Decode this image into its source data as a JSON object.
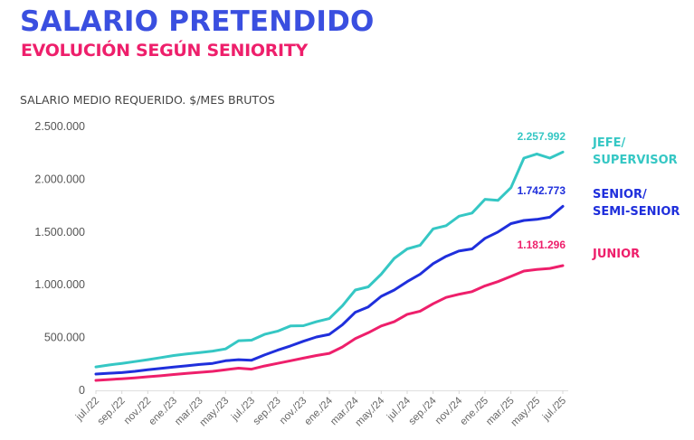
{
  "header": {
    "title": "SALARIO PRETENDIDO",
    "subtitle": "EVOLUCIÓN SEGÚN SENIORITY",
    "axis_title": "SALARIO MEDIO REQUERIDO. $/MES BRUTOS"
  },
  "chart_data": {
    "type": "line",
    "title": "SALARIO PRETENDIDO",
    "subtitle": "EVOLUCIÓN SEGÚN SENIORITY",
    "ylabel": "SALARIO MEDIO REQUERIDO. $/MES BRUTOS",
    "xlabel": "",
    "ylim": [
      0,
      2500000
    ],
    "yticks": [
      0,
      500000,
      1000000,
      1500000,
      2000000,
      2500000
    ],
    "ytick_labels": [
      "0",
      "500.000",
      "1.000.000",
      "1.500.000",
      "2.000.000",
      "2.500.000"
    ],
    "grid": false,
    "legend": "right (end-of-line labels)",
    "x": [
      "jul./22",
      "ago./22",
      "sep./22",
      "oct./22",
      "nov./22",
      "dic./22",
      "ene./23",
      "feb./23",
      "mar./23",
      "abr./23",
      "may./23",
      "jun./23",
      "jul./23",
      "ago./23",
      "sep./23",
      "oct./23",
      "nov./23",
      "dic./23",
      "ene./24",
      "feb./24",
      "mar./24",
      "abr./24",
      "may./24",
      "jun./24",
      "jul./24",
      "ago./24",
      "sep./24",
      "oct./24",
      "nov./24",
      "dic./24",
      "ene./25",
      "feb./25",
      "mar./25",
      "abr./25",
      "may./25",
      "jun./25",
      "jul./25"
    ],
    "xtick_labels": [
      "jul./22",
      "sep./22",
      "nov./22",
      "ene./23",
      "mar./23",
      "may./23",
      "jul./23",
      "sep./23",
      "nov./23",
      "ene./24",
      "mar./24",
      "may./24",
      "jul./24",
      "sep./24",
      "nov./24",
      "ene./25",
      "mar./25",
      "may./25",
      "jul./25"
    ],
    "series": [
      {
        "name": "JEFE/ SUPERVISOR",
        "label_lines": [
          "JEFE/",
          "SUPERVISOR"
        ],
        "color": "#35c7c4",
        "end_label": "2.257.992",
        "values": [
          222000,
          240000,
          255000,
          272000,
          290000,
          310000,
          330000,
          345000,
          358000,
          372000,
          392000,
          470000,
          475000,
          530000,
          560000,
          610000,
          612000,
          650000,
          680000,
          800000,
          950000,
          980000,
          1100000,
          1250000,
          1340000,
          1375000,
          1530000,
          1560000,
          1650000,
          1680000,
          1810000,
          1800000,
          1920000,
          2200000,
          2240000,
          2200000,
          2257992
        ]
      },
      {
        "name": "SENIOR/ SEMI-SENIOR",
        "label_lines": [
          "SENIOR/",
          "SEMI-SENIOR"
        ],
        "color": "#1f2fdc",
        "end_label": "1.742.773",
        "values": [
          154000,
          162000,
          168000,
          180000,
          195000,
          208000,
          220000,
          232000,
          245000,
          255000,
          280000,
          290000,
          285000,
          335000,
          380000,
          420000,
          465000,
          505000,
          530000,
          620000,
          740000,
          790000,
          890000,
          950000,
          1030000,
          1100000,
          1200000,
          1270000,
          1320000,
          1340000,
          1440000,
          1500000,
          1580000,
          1610000,
          1620000,
          1640000,
          1742773
        ]
      },
      {
        "name": "JUNIOR",
        "label_lines": [
          "JUNIOR"
        ],
        "color": "#ee1f6b",
        "end_label": "1.181.296",
        "values": [
          94000,
          102000,
          110000,
          118000,
          128000,
          138000,
          150000,
          160000,
          170000,
          180000,
          195000,
          210000,
          200000,
          230000,
          255000,
          280000,
          305000,
          330000,
          350000,
          410000,
          490000,
          545000,
          610000,
          650000,
          720000,
          750000,
          820000,
          880000,
          910000,
          935000,
          990000,
          1030000,
          1080000,
          1130000,
          1145000,
          1155000,
          1181296
        ]
      }
    ]
  }
}
